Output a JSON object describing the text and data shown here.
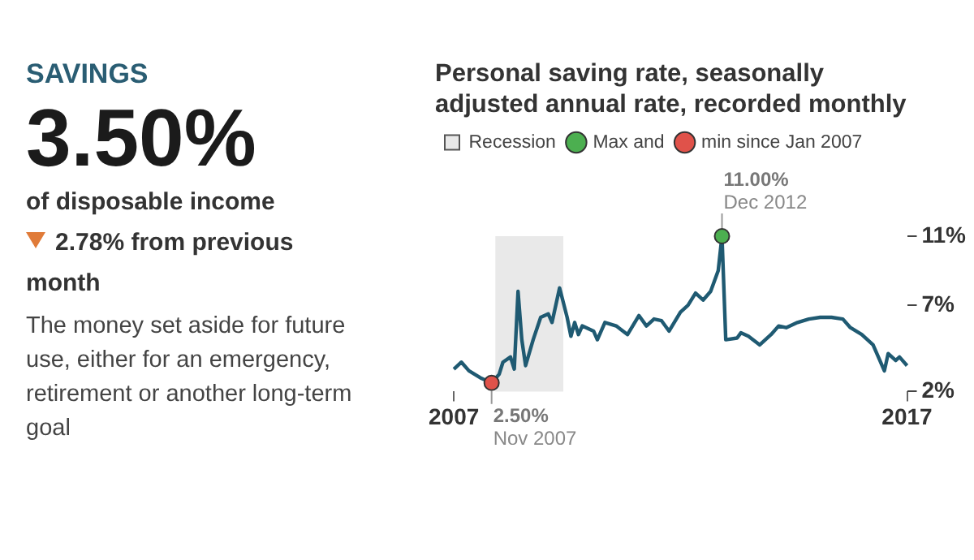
{
  "chart_data": [
    {
      "type": "other",
      "title": "SAVINGS",
      "annotations": [
        "3.50%",
        "of disposable income",
        "2.78% from previous month",
        "The money set aside for future use, either for an emergency, retirement or another long-term goal"
      ]
    },
    {
      "type": "line",
      "title": "Personal saving rate, seasonally adjusted annual rate, recorded monthly",
      "legend": "top",
      "grid": false,
      "marker": "none",
      "xlim": [
        "2007-01",
        "2017-01"
      ],
      "xticks": [
        "2007",
        "2017"
      ],
      "ylim": [
        2,
        11
      ],
      "yticks": [
        {
          "value": 2,
          "label": "2%"
        },
        {
          "value": 7,
          "label": "7%"
        },
        {
          "value": 11,
          "label": "11%"
        }
      ],
      "bands": [
        {
          "axis": "x",
          "from": "2007-12",
          "to": "2009-06",
          "label": "Recession",
          "color": "#e9e9e9"
        }
      ],
      "series": [
        {
          "type": "line",
          "color": "#1f5a72",
          "x": [
            "2007-01",
            "2007-03",
            "2007-05",
            "2007-08",
            "2007-11",
            "2008-01",
            "2008-02",
            "2008-04",
            "2008-05",
            "2008-06",
            "2008-07",
            "2008-08",
            "2008-10",
            "2008-12",
            "2009-02",
            "2009-03",
            "2009-05",
            "2009-07",
            "2009-08",
            "2009-09",
            "2009-10",
            "2009-11",
            "2010-02",
            "2010-03",
            "2010-05",
            "2010-08",
            "2010-11",
            "2011-02",
            "2011-04",
            "2011-06",
            "2011-08",
            "2011-10",
            "2012-01",
            "2012-03",
            "2012-05",
            "2012-07",
            "2012-09",
            "2012-11",
            "2012-12",
            "2013-01",
            "2013-04",
            "2013-05",
            "2013-07",
            "2013-10",
            "2014-01",
            "2014-03",
            "2014-05",
            "2014-08",
            "2014-11",
            "2015-02",
            "2015-05",
            "2015-08",
            "2015-10",
            "2016-01",
            "2016-04",
            "2016-07",
            "2016-08",
            "2016-10",
            "2016-11",
            "2017-01"
          ],
          "values": [
            3.3,
            3.7,
            3.2,
            2.8,
            2.5,
            3.0,
            3.7,
            4.0,
            3.3,
            7.8,
            5.0,
            3.5,
            5.0,
            6.3,
            6.5,
            6.0,
            8.0,
            6.3,
            5.2,
            6.0,
            5.3,
            5.8,
            5.5,
            5.0,
            6.0,
            5.8,
            5.3,
            6.4,
            5.8,
            6.2,
            6.1,
            5.5,
            6.6,
            7.0,
            7.7,
            7.3,
            7.8,
            9.0,
            11.0,
            5.0,
            5.1,
            5.4,
            5.2,
            4.7,
            5.3,
            5.8,
            5.7,
            6.0,
            6.2,
            6.3,
            6.3,
            6.2,
            5.7,
            5.3,
            4.7,
            3.2,
            4.2,
            3.8,
            4.0,
            3.5
          ]
        },
        {
          "type": "scatter",
          "name": "Max and",
          "color": "#4caf50",
          "marker": "circle",
          "x": [
            "2012-12"
          ],
          "values": [
            11.0
          ]
        },
        {
          "type": "scatter",
          "name": "min since Jan 2007",
          "color": "#e0524a",
          "marker": "circle",
          "x": [
            "2007-11"
          ],
          "values": [
            2.5
          ]
        }
      ],
      "annotations": [
        {
          "text": "11.00%",
          "x": "2012-12",
          "y": 11.0
        },
        {
          "text": "Dec 2012",
          "x": "2012-12",
          "y": 11.0
        },
        {
          "text": "2.50%",
          "x": "2007-11",
          "y": 2.5
        },
        {
          "text": "Nov 2007",
          "x": "2007-11",
          "y": 2.5
        }
      ]
    }
  ]
}
